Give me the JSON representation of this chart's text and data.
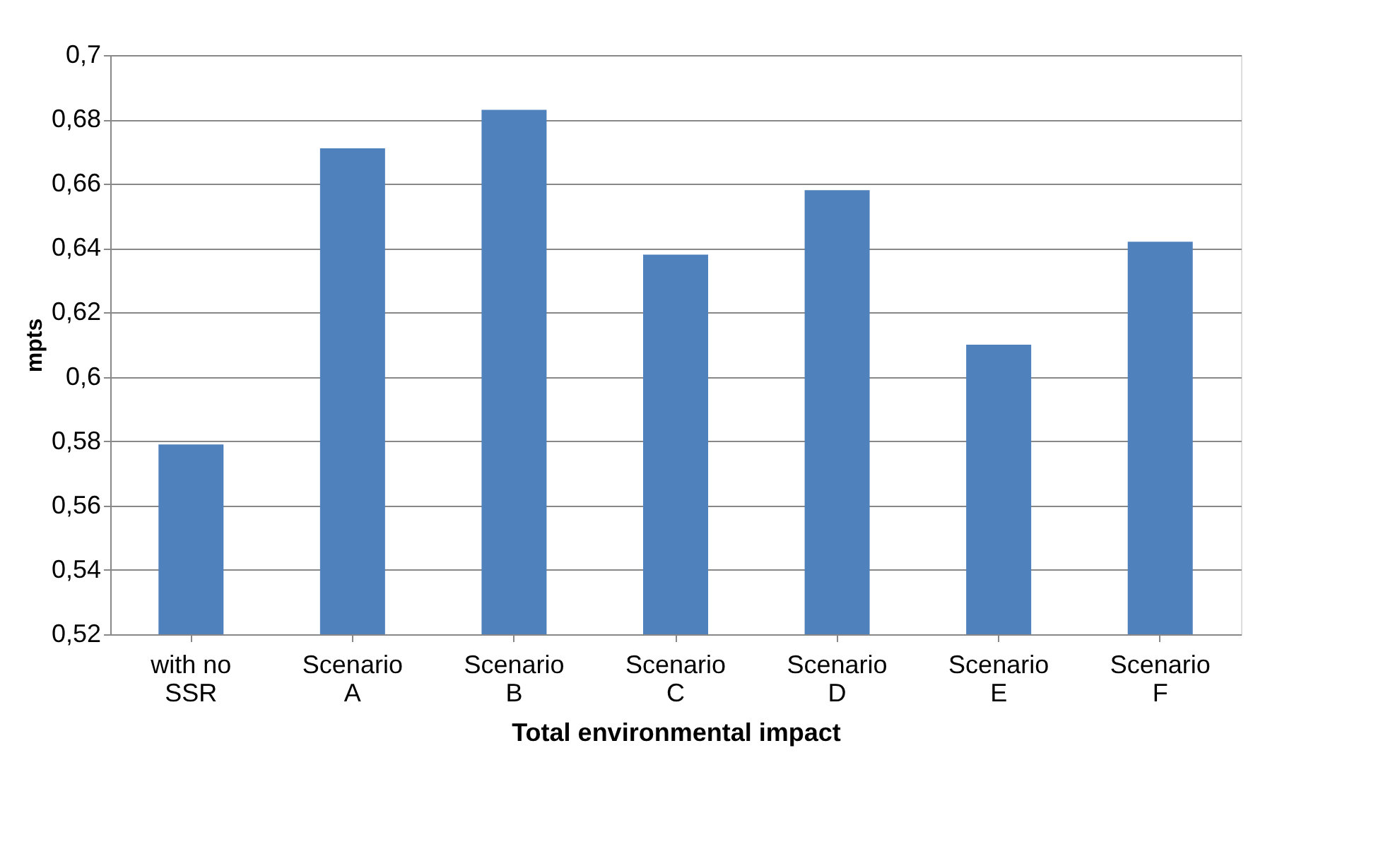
{
  "chart_data": {
    "type": "bar",
    "xlabel": "Total environmental impact",
    "ylabel": "mpts",
    "categories": [
      "with no\nSSR",
      "Scenario\nA",
      "Scenario\nB",
      "Scenario\nC",
      "Scenario\nD",
      "Scenario\nE",
      "Scenario\nF"
    ],
    "values": [
      0.579,
      0.671,
      0.683,
      0.638,
      0.658,
      0.61,
      0.642
    ],
    "color": "#4f81bd",
    "ylim": [
      0.52,
      0.7
    ],
    "yticks": [
      {
        "value": 0.52,
        "label": "0,52"
      },
      {
        "value": 0.54,
        "label": "0,54"
      },
      {
        "value": 0.56,
        "label": "0,56"
      },
      {
        "value": 0.58,
        "label": "0,58"
      },
      {
        "value": 0.6,
        "label": "0,6"
      },
      {
        "value": 0.62,
        "label": "0,62"
      },
      {
        "value": 0.64,
        "label": "0,64"
      },
      {
        "value": 0.66,
        "label": "0,66"
      },
      {
        "value": 0.68,
        "label": "0,68"
      },
      {
        "value": 0.7,
        "label": "0,7"
      }
    ],
    "grid": "y"
  }
}
